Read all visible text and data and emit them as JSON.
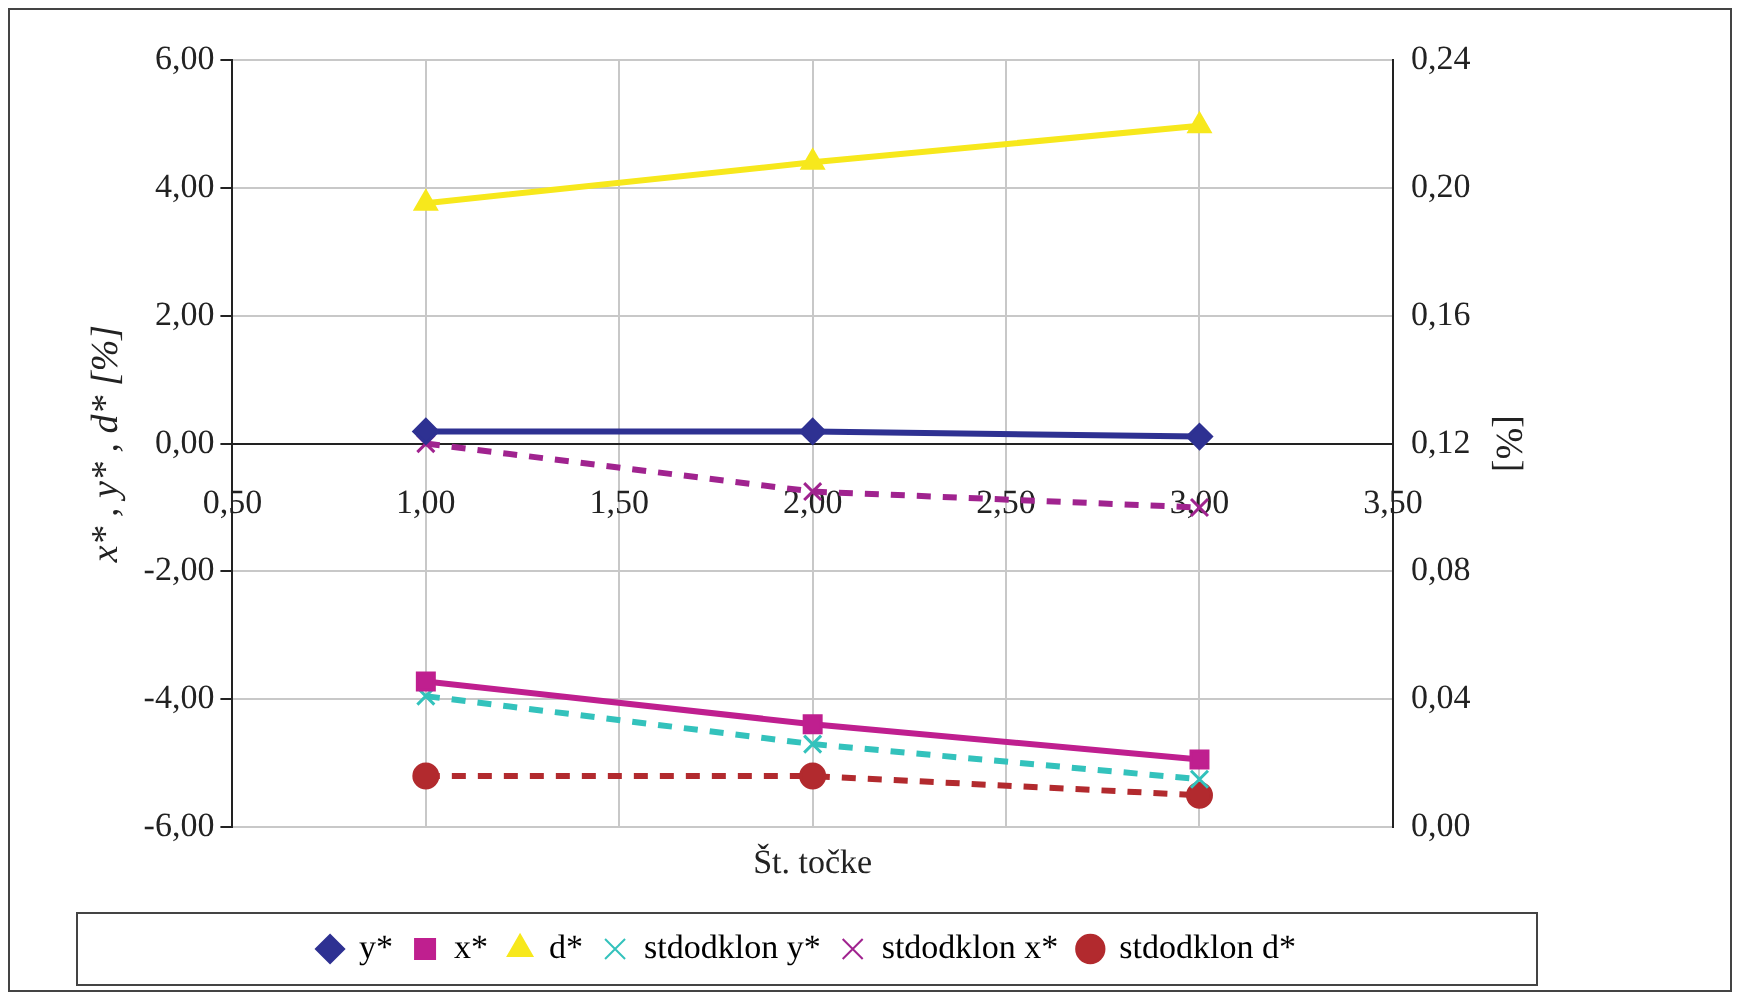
{
  "chart_data": {
    "type": "line",
    "xlabel": "Št. točke",
    "ylabel": "x* , y* , d* [%]",
    "y2label": "[%]",
    "xlim": [
      0.5,
      3.5
    ],
    "xticks": [
      {
        "value": 0.5,
        "label": "0,50"
      },
      {
        "value": 1,
        "label": "1,00"
      },
      {
        "value": 1.5,
        "label": "1,50"
      },
      {
        "value": 2,
        "label": "2,00"
      },
      {
        "value": 2.5,
        "label": "2,50"
      },
      {
        "value": 3,
        "label": "3,00"
      },
      {
        "value": 3.5,
        "label": "3,50"
      }
    ],
    "ylim": [
      -6,
      6
    ],
    "yticks": [
      {
        "value": -6,
        "label": "-6,00"
      },
      {
        "value": -4,
        "label": "-4,00"
      },
      {
        "value": -2,
        "label": "-2,00"
      },
      {
        "value": 0,
        "label": "0,00"
      },
      {
        "value": 2,
        "label": "2,00"
      },
      {
        "value": 4,
        "label": "4,00"
      },
      {
        "value": 6,
        "label": "6,00"
      }
    ],
    "y2lim": [
      0,
      0.24
    ],
    "y2ticks": [
      {
        "value": 0,
        "label": "0,00"
      },
      {
        "value": 0.04,
        "label": "0,04"
      },
      {
        "value": 0.08,
        "label": "0,08"
      },
      {
        "value": 0.12,
        "label": "0,12"
      },
      {
        "value": 0.16,
        "label": "0,16"
      },
      {
        "value": 0.2,
        "label": "0,20"
      },
      {
        "value": 0.24,
        "label": "0,24"
      }
    ],
    "x": [
      1,
      2,
      3
    ],
    "grid": true,
    "legend": "bottom",
    "series": [
      {
        "name": "y*",
        "color": "#2e3192",
        "values": [
          0.19,
          0.19,
          0.11
        ],
        "marker": "diamond",
        "line_style": "solid"
      },
      {
        "name": "x*",
        "color": "#bf1f8f",
        "values": [
          -3.72,
          -4.39,
          -4.94
        ],
        "marker": "square",
        "line_style": "solid"
      },
      {
        "name": "d*",
        "color": "#f7e81c",
        "values": [
          3.76,
          4.4,
          4.97
        ],
        "marker": "triangle",
        "line_style": "solid"
      },
      {
        "name": "stdodklon y*",
        "color": "#33c2bc",
        "values": [
          0.041,
          0.026,
          0.015
        ],
        "marker": "cross",
        "line_style": "dashed",
        "axis": "y2"
      },
      {
        "name": "stdodklon x*",
        "color": "#a0238f",
        "values": [
          0.12,
          0.105,
          0.1
        ],
        "marker": "cross",
        "line_style": "dashed",
        "axis": "y2"
      },
      {
        "name": "stdodklon d*",
        "color": "#b22a2e",
        "values": [
          0.016,
          0.016,
          0.01
        ],
        "marker": "circle",
        "line_style": "dashed",
        "axis": "y2"
      }
    ]
  }
}
